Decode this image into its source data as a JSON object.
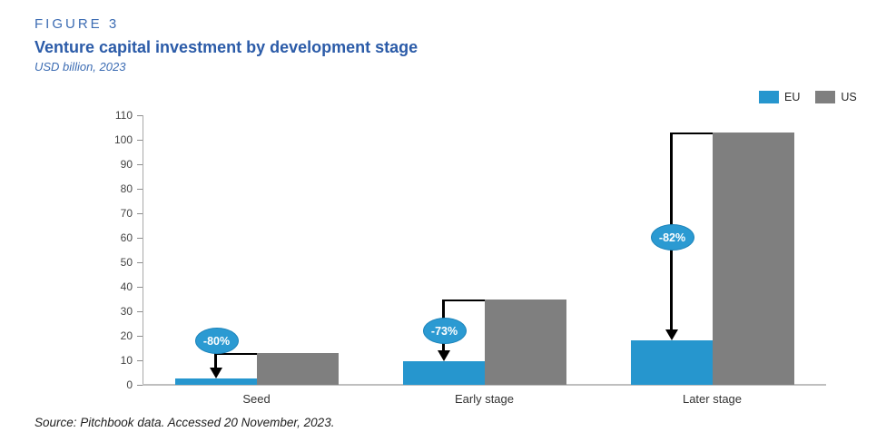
{
  "figure": {
    "label": "FIGURE 3",
    "title": "Venture capital investment by development stage",
    "subtitle": "USD billion, 2023",
    "source": "Source: Pitchbook data. Accessed 20 November, 2023."
  },
  "legend": [
    {
      "label": "EU",
      "color": "#2696ce"
    },
    {
      "label": "US",
      "color": "#7f7f7f"
    }
  ],
  "colors": {
    "eu_bar": "#2696ce",
    "us_bar": "#7f7f7f",
    "annotation_fill": "#2b9ad2",
    "annotation_edge": "#1d84ba",
    "annotation_text": "#ffffff",
    "title_blue": "#2b5ba8",
    "accent_blue": "#3c6cb3",
    "axis_line": "#a9a9a9",
    "baseline": "#bfbfbf"
  },
  "chart_data": {
    "type": "bar",
    "categories": [
      "Seed",
      "Early stage",
      "Later stage"
    ],
    "series": [
      {
        "name": "EU",
        "values": [
          2.5,
          9.5,
          18
        ],
        "color": "#2696ce"
      },
      {
        "name": "US",
        "values": [
          13,
          35,
          103
        ],
        "color": "#7f7f7f"
      }
    ],
    "annotations": [
      {
        "category": "Seed",
        "label": "-80%"
      },
      {
        "category": "Early stage",
        "label": "-73%"
      },
      {
        "category": "Later stage",
        "label": "-82%"
      }
    ],
    "title": "Venture capital investment by development stage",
    "xlabel": "",
    "ylabel": "",
    "ylim": [
      0,
      110
    ],
    "ytick_step": 10,
    "grid": false,
    "legend_position": "top-right"
  }
}
